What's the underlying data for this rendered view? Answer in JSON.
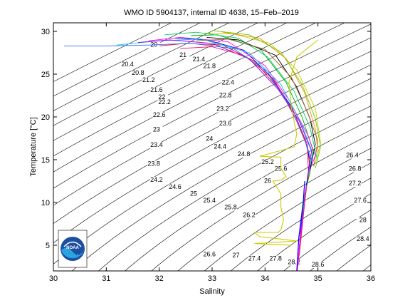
{
  "chart_data": {
    "type": "line",
    "title": "WMO ID 5904137, internal ID 4638, 15–Feb–2019",
    "xlabel": "Salinity",
    "ylabel": "Temperature [°C]",
    "xlim": [
      30,
      36
    ],
    "ylim": [
      2,
      31
    ],
    "xticks": [
      "30",
      "31",
      "32",
      "33",
      "34",
      "35",
      "36"
    ],
    "yticks": [
      "5",
      "10",
      "15",
      "20",
      "25",
      "30"
    ],
    "grid": false,
    "logo": {
      "name": "noaa-logo",
      "text": "NOAA"
    },
    "sigma_contours": {
      "levels": [
        19.2,
        19.6,
        20,
        20.4,
        20.8,
        21.2,
        21.6,
        22,
        22.4,
        22.8,
        23.2,
        23.6,
        24,
        24.4,
        24.8,
        25.2,
        25.6,
        26,
        26.4,
        26.8,
        27.2,
        27.6,
        28,
        28.4,
        28.8,
        29.2,
        29.6
      ],
      "labels": [
        {
          "text": "20.4",
          "s": 31.4,
          "t": 25.9
        },
        {
          "text": "20",
          "s": 31.9,
          "t": 28.2
        },
        {
          "text": "20.8",
          "s": 31.6,
          "t": 24.9
        },
        {
          "text": "21",
          "s": 32.45,
          "t": 27.0
        },
        {
          "text": "21.2",
          "s": 31.8,
          "t": 24.1
        },
        {
          "text": "21.4",
          "s": 32.75,
          "t": 26.5
        },
        {
          "text": "21.6",
          "s": 31.95,
          "t": 22.9
        },
        {
          "text": "21.8",
          "s": 32.95,
          "t": 25.7
        },
        {
          "text": "22",
          "s": 32.05,
          "t": 22.1
        },
        {
          "text": "22.2",
          "s": 32.1,
          "t": 21.5
        },
        {
          "text": "22.4",
          "s": 33.3,
          "t": 23.8
        },
        {
          "text": "22.6",
          "s": 32.0,
          "t": 20.0
        },
        {
          "text": "22.8",
          "s": 33.25,
          "t": 22.3
        },
        {
          "text": "23",
          "s": 31.95,
          "t": 18.3
        },
        {
          "text": "23.2",
          "s": 33.2,
          "t": 20.7
        },
        {
          "text": "23.4",
          "s": 31.95,
          "t": 16.5
        },
        {
          "text": "23.6",
          "s": 33.25,
          "t": 19.0
        },
        {
          "text": "23.8",
          "s": 31.9,
          "t": 14.3
        },
        {
          "text": "24",
          "s": 32.95,
          "t": 17.2
        },
        {
          "text": "24.2",
          "s": 31.95,
          "t": 12.4
        },
        {
          "text": "24.4",
          "s": 33.15,
          "t": 16.3
        },
        {
          "text": "24.6",
          "s": 32.3,
          "t": 11.6
        },
        {
          "text": "24.8",
          "s": 33.6,
          "t": 15.4
        },
        {
          "text": "25",
          "s": 32.65,
          "t": 10.8
        },
        {
          "text": "25.2",
          "s": 34.05,
          "t": 14.5
        },
        {
          "text": "25.4",
          "s": 32.95,
          "t": 10.0
        },
        {
          "text": "25.6",
          "s": 34.3,
          "t": 13.7
        },
        {
          "text": "25.8",
          "s": 33.35,
          "t": 9.2
        },
        {
          "text": "26",
          "s": 34.05,
          "t": 12.3
        },
        {
          "text": "26.2",
          "s": 33.7,
          "t": 8.3
        },
        {
          "text": "26.4",
          "s": 35.65,
          "t": 15.3
        },
        {
          "text": "26.6",
          "s": 32.95,
          "t": 3.7
        },
        {
          "text": "26.8",
          "s": 35.7,
          "t": 13.7
        },
        {
          "text": "27",
          "s": 33.45,
          "t": 3.6
        },
        {
          "text": "27.2",
          "s": 35.7,
          "t": 12.0
        },
        {
          "text": "27.4",
          "s": 33.8,
          "t": 3.2
        },
        {
          "text": "27.6",
          "s": 35.8,
          "t": 10.0
        },
        {
          "text": "27.8",
          "s": 34.2,
          "t": 3.2
        },
        {
          "text": "28",
          "s": 35.85,
          "t": 7.7
        },
        {
          "text": "28.2",
          "s": 34.55,
          "t": 2.8
        },
        {
          "text": "28.4",
          "s": 35.85,
          "t": 5.5
        },
        {
          "text": "28.6",
          "s": 35.0,
          "t": 2.5
        }
      ]
    },
    "series": [
      {
        "color": "#ff0000",
        "values": [
          [
            32.0,
            28.3
          ],
          [
            32.5,
            28.6
          ],
          [
            33.2,
            28.4
          ],
          [
            33.8,
            26.5
          ],
          [
            34.3,
            23.0
          ],
          [
            34.6,
            19.5
          ],
          [
            34.8,
            16.5
          ],
          [
            34.85,
            14.0
          ],
          [
            34.8,
            12.5
          ],
          [
            34.75,
            10.0
          ],
          [
            34.7,
            7.0
          ],
          [
            34.65,
            4.0
          ],
          [
            34.6,
            2.2
          ]
        ]
      },
      {
        "color": "#0000ff",
        "values": [
          [
            32.3,
            29.2
          ],
          [
            32.9,
            29.0
          ],
          [
            33.6,
            27.8
          ],
          [
            34.1,
            24.8
          ],
          [
            34.5,
            21.2
          ],
          [
            34.75,
            17.5
          ],
          [
            34.85,
            15.0
          ],
          [
            34.8,
            12.8
          ],
          [
            34.72,
            9.5
          ],
          [
            34.67,
            6.5
          ],
          [
            34.62,
            2.5
          ]
        ]
      },
      {
        "color": "#00aa00",
        "values": [
          [
            32.6,
            29.5
          ],
          [
            33.1,
            29.6
          ],
          [
            33.9,
            28.0
          ],
          [
            34.4,
            24.0
          ],
          [
            34.7,
            20.0
          ],
          [
            34.9,
            16.2
          ],
          [
            34.85,
            13.5
          ],
          [
            34.75,
            11.0
          ],
          [
            34.7,
            8.0
          ]
        ]
      },
      {
        "color": "#ff00ff",
        "values": [
          [
            31.8,
            28.9
          ],
          [
            32.4,
            29.3
          ],
          [
            33.3,
            28.8
          ],
          [
            34.0,
            26.0
          ],
          [
            34.45,
            22.0
          ],
          [
            34.8,
            18.0
          ],
          [
            34.95,
            15.5
          ],
          [
            34.8,
            13.0
          ]
        ]
      },
      {
        "color": "#00cccc",
        "values": [
          [
            31.2,
            28.4
          ],
          [
            32.0,
            28.9
          ],
          [
            32.8,
            29.1
          ],
          [
            33.7,
            27.5
          ],
          [
            34.3,
            23.8
          ],
          [
            34.7,
            19.0
          ],
          [
            34.9,
            15.8
          ],
          [
            34.82,
            13.2
          ]
        ]
      },
      {
        "color": "#cccc00",
        "values": [
          [
            32.8,
            29.8
          ],
          [
            33.4,
            29.7
          ],
          [
            34.1,
            28.6
          ],
          [
            34.6,
            25.5
          ],
          [
            34.95,
            21.0
          ],
          [
            35.05,
            17.0
          ],
          [
            34.95,
            14.5
          ]
        ]
      },
      {
        "color": "#000000",
        "values": [
          [
            32.9,
            29.3
          ],
          [
            33.5,
            29.0
          ],
          [
            34.2,
            27.2
          ],
          [
            34.6,
            23.5
          ],
          [
            34.85,
            19.8
          ],
          [
            34.95,
            16.8
          ],
          [
            34.85,
            13.8
          ]
        ]
      },
      {
        "color": "#ff8800",
        "values": [
          [
            33.2,
            29.9
          ],
          [
            33.9,
            29.2
          ],
          [
            34.4,
            26.8
          ],
          [
            34.75,
            22.8
          ],
          [
            34.95,
            18.6
          ],
          [
            35.0,
            15.8
          ]
        ]
      },
      {
        "color": "#8800ff",
        "values": [
          [
            31.6,
            28.7
          ],
          [
            32.2,
            29.0
          ],
          [
            33.0,
            28.6
          ],
          [
            33.7,
            26.8
          ],
          [
            34.25,
            23.2
          ],
          [
            34.65,
            19.5
          ],
          [
            34.88,
            16.0
          ],
          [
            34.8,
            12.8
          ]
        ]
      },
      {
        "color": "#00cc66",
        "values": [
          [
            32.1,
            29.6
          ],
          [
            32.7,
            29.9
          ],
          [
            33.5,
            29.2
          ],
          [
            34.05,
            27.0
          ],
          [
            34.55,
            23.0
          ],
          [
            34.85,
            18.8
          ],
          [
            34.98,
            15.2
          ]
        ]
      },
      {
        "color": "#ff0066",
        "values": [
          [
            32.4,
            28.0
          ],
          [
            33.0,
            28.2
          ],
          [
            33.6,
            27.2
          ],
          [
            34.15,
            24.5
          ],
          [
            34.55,
            20.5
          ],
          [
            34.8,
            16.8
          ],
          [
            34.82,
            13.5
          ]
        ]
      },
      {
        "color": "#3366ff",
        "values": [
          [
            30.2,
            28.3
          ],
          [
            31.0,
            28.3
          ],
          [
            31.8,
            28.4
          ],
          [
            32.6,
            28.6
          ],
          [
            33.4,
            28.0
          ],
          [
            34.0,
            25.5
          ],
          [
            34.4,
            22.0
          ],
          [
            34.7,
            18.2
          ],
          [
            34.88,
            15.0
          ]
        ]
      },
      {
        "color": "#996633",
        "values": [
          [
            32.7,
            28.9
          ],
          [
            33.3,
            29.1
          ],
          [
            34.0,
            27.9
          ],
          [
            34.5,
            24.6
          ],
          [
            34.8,
            20.6
          ],
          [
            35.0,
            17.2
          ],
          [
            34.92,
            14.2
          ]
        ]
      },
      {
        "color": "#66cc00",
        "values": [
          [
            33.0,
            30.1
          ],
          [
            33.7,
            29.6
          ],
          [
            34.3,
            27.6
          ],
          [
            34.7,
            23.8
          ],
          [
            34.95,
            19.8
          ],
          [
            35.05,
            16.5
          ],
          [
            34.95,
            14.0
          ]
        ]
      }
    ],
    "deep_profiles": [
      {
        "color": "#0000ff",
        "values": [
          [
            34.75,
            12.5
          ],
          [
            34.72,
            10.0
          ],
          [
            34.68,
            8.0
          ],
          [
            34.64,
            6.0
          ],
          [
            34.62,
            4.0
          ],
          [
            34.6,
            2.0
          ]
        ]
      },
      {
        "color": "#ff00ff",
        "values": [
          [
            34.78,
            12.0
          ],
          [
            34.74,
            9.5
          ],
          [
            34.7,
            7.5
          ],
          [
            34.66,
            5.5
          ],
          [
            34.63,
            3.5
          ],
          [
            34.61,
            2.0
          ]
        ]
      }
    ],
    "anomaly": {
      "color": "#cccc00",
      "values": [
        [
          35.0,
          29.0
        ],
        [
          34.6,
          27.0
        ],
        [
          34.45,
          24.0
        ],
        [
          34.5,
          21.0
        ],
        [
          34.6,
          18.0
        ],
        [
          34.55,
          16.5
        ],
        [
          33.9,
          15.4
        ],
        [
          34.3,
          15.3
        ],
        [
          34.3,
          14.0
        ],
        [
          34.4,
          13.0
        ],
        [
          34.3,
          12.6
        ],
        [
          34.15,
          12.5
        ],
        [
          34.3,
          11.0
        ],
        [
          34.3,
          9.5
        ],
        [
          34.35,
          8.0
        ],
        [
          34.3,
          6.8
        ],
        [
          34.25,
          6.5
        ],
        [
          33.8,
          6.5
        ],
        [
          33.9,
          6.0
        ],
        [
          34.6,
          5.5
        ],
        [
          33.8,
          5.2
        ],
        [
          34.5,
          5.0
        ]
      ]
    }
  }
}
